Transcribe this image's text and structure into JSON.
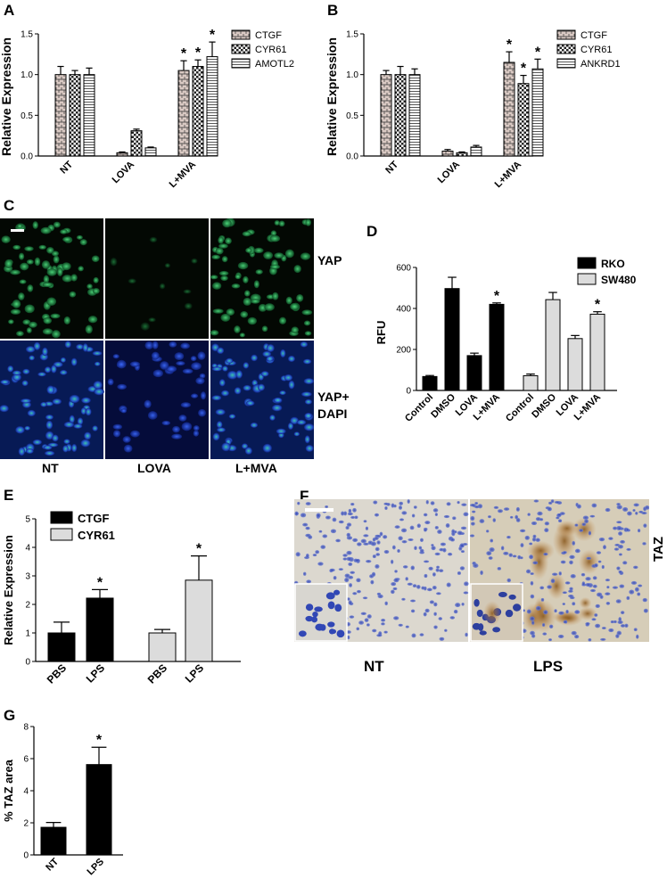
{
  "panels": {
    "A": {
      "letter": "A"
    },
    "B": {
      "letter": "B"
    },
    "C": {
      "letter": "C",
      "row_labels": [
        "YAP",
        "YAP+",
        "DAPI"
      ],
      "col_labels": [
        "NT",
        "LOVA",
        "L+MVA"
      ]
    },
    "D": {
      "letter": "D"
    },
    "E": {
      "letter": "E"
    },
    "F": {
      "letter": "F",
      "side_label": "TAZ",
      "col_labels": [
        "NT",
        "LPS"
      ]
    },
    "G": {
      "letter": "G"
    }
  },
  "chart_data": [
    {
      "id": "A",
      "type": "bar",
      "categories": [
        "NT",
        "LOVA",
        "L+MVA"
      ],
      "ylabel": "Relative Expression",
      "ylim": [
        0,
        1.5
      ],
      "yticks": [
        "0.0",
        "0.5",
        "1.0",
        "1.5"
      ],
      "legend_position": "right",
      "series": [
        {
          "name": "CTGF",
          "values": [
            1.0,
            0.04,
            1.05
          ],
          "errors": [
            0.1,
            0.01,
            0.12
          ],
          "marks": [
            "",
            "",
            "*"
          ],
          "fill": "#d9c9c3",
          "pattern": "bricks"
        },
        {
          "name": "CYR61",
          "values": [
            1.0,
            0.31,
            1.1
          ],
          "errors": [
            0.05,
            0.02,
            0.08
          ],
          "marks": [
            "",
            "",
            "*"
          ],
          "fill": "#ffffff",
          "pattern": "checks"
        },
        {
          "name": "AMOTL2",
          "values": [
            1.0,
            0.1,
            1.22
          ],
          "errors": [
            0.08,
            0.01,
            0.18
          ],
          "marks": [
            "",
            "",
            "*"
          ],
          "fill": "#ffffff",
          "pattern": "hlines"
        }
      ]
    },
    {
      "id": "B",
      "type": "bar",
      "categories": [
        "NT",
        "LOVA",
        "L+MVA"
      ],
      "ylabel": "Relative Expression",
      "ylim": [
        0,
        1.5
      ],
      "yticks": [
        "0.0",
        "0.5",
        "1.0",
        "1.5"
      ],
      "legend_position": "right",
      "series": [
        {
          "name": "CTGF",
          "values": [
            1.0,
            0.06,
            1.15
          ],
          "errors": [
            0.05,
            0.02,
            0.13
          ],
          "marks": [
            "",
            "",
            "*"
          ],
          "fill": "#d9c9c3",
          "pattern": "bricks"
        },
        {
          "name": "CYR61",
          "values": [
            1.0,
            0.04,
            0.89
          ],
          "errors": [
            0.1,
            0.01,
            0.1
          ],
          "marks": [
            "",
            "",
            "*"
          ],
          "fill": "#ffffff",
          "pattern": "checks"
        },
        {
          "name": "ANKRD1",
          "values": [
            1.0,
            0.11,
            1.07
          ],
          "errors": [
            0.07,
            0.02,
            0.12
          ],
          "marks": [
            "",
            "",
            "*"
          ],
          "fill": "#ffffff",
          "pattern": "hlines"
        }
      ]
    },
    {
      "id": "D",
      "type": "bar",
      "ylabel": "RFU",
      "ylim": [
        0,
        600
      ],
      "yticks": [
        "0",
        "200",
        "400",
        "600"
      ],
      "legend_position": "top-right",
      "groups": [
        {
          "name": "RKO",
          "fill": "#000000",
          "categories": [
            "Control",
            "DMSO",
            "LOVA",
            "L+MVA"
          ],
          "values": [
            68,
            497,
            170,
            420
          ],
          "errors": [
            5,
            55,
            12,
            7
          ],
          "marks": [
            "",
            "",
            "",
            "*"
          ]
        },
        {
          "name": "SW480",
          "fill": "#dcdcdc",
          "categories": [
            "Control",
            "DMSO",
            "LOVA",
            "L+MVA"
          ],
          "values": [
            72,
            443,
            253,
            372
          ],
          "errors": [
            8,
            35,
            15,
            12
          ],
          "marks": [
            "",
            "",
            "",
            "*"
          ]
        }
      ]
    },
    {
      "id": "E",
      "type": "bar",
      "ylabel": "Relative Expression",
      "ylim": [
        0,
        5
      ],
      "yticks": [
        "0",
        "1",
        "2",
        "3",
        "4",
        "5"
      ],
      "legend_position": "top-left",
      "groups": [
        {
          "name": "CTGF",
          "fill": "#000000",
          "categories": [
            "PBS",
            "LPS"
          ],
          "values": [
            1.0,
            2.22
          ],
          "errors": [
            0.38,
            0.3
          ],
          "marks": [
            "",
            "*"
          ]
        },
        {
          "name": "CYR61",
          "fill": "#dcdcdc",
          "categories": [
            "PBS",
            "LPS"
          ],
          "values": [
            1.0,
            2.85
          ],
          "errors": [
            0.12,
            0.85
          ],
          "marks": [
            "",
            "*"
          ]
        }
      ]
    },
    {
      "id": "G",
      "type": "bar",
      "ylabel": "% TAZ area",
      "ylim": [
        0,
        8
      ],
      "yticks": [
        "0",
        "2",
        "4",
        "6",
        "8"
      ],
      "categories": [
        "NT",
        "LPS"
      ],
      "series": [
        {
          "fill": "#000000",
          "values": [
            1.72,
            5.63
          ],
          "errors": [
            0.3,
            1.08
          ],
          "marks": [
            "",
            "*"
          ]
        }
      ]
    }
  ]
}
